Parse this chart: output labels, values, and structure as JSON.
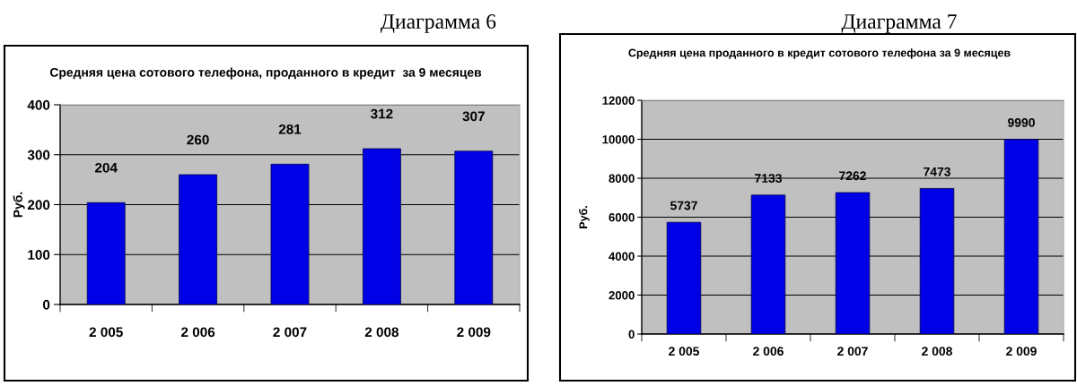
{
  "chart_data": [
    {
      "type": "bar",
      "title": "Средняя цена сотового телефона, проданного в кредит  за 9 месяцев",
      "ylabel": "Руб.",
      "annotations": [
        "Диаграмма 6"
      ],
      "categories": [
        "2 005",
        "2 006",
        "2 007",
        "2 008",
        "2 009"
      ],
      "values": [
        204,
        260,
        281,
        312,
        307
      ],
      "color": "#0000e6",
      "ylim": [
        0,
        400
      ],
      "yticks": [
        0,
        100,
        200,
        300,
        400
      ],
      "grid": "y",
      "data_labels": true
    },
    {
      "type": "bar",
      "title": "Средняя цена проданного в кредит сотового телефона за 9 месяцев",
      "ylabel": "Руб.",
      "annotations": [
        "Диаграмма 7"
      ],
      "categories": [
        "2 005",
        "2 006",
        "2 007",
        "2 008",
        "2 009"
      ],
      "values": [
        5737,
        7133,
        7262,
        7473,
        9990
      ],
      "color": "#0000e6",
      "ylim": [
        0,
        12000
      ],
      "yticks": [
        0,
        2000,
        4000,
        6000,
        8000,
        10000,
        12000
      ],
      "grid": "y",
      "data_labels": true
    }
  ]
}
